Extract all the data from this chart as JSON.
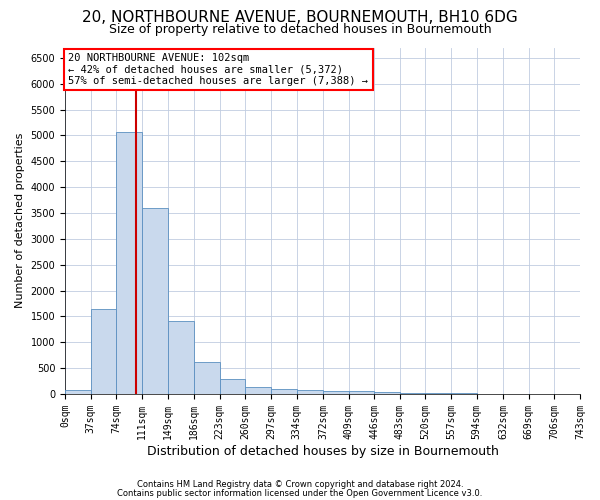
{
  "title": "20, NORTHBOURNE AVENUE, BOURNEMOUTH, BH10 6DG",
  "subtitle": "Size of property relative to detached houses in Bournemouth",
  "xlabel": "Distribution of detached houses by size in Bournemouth",
  "ylabel": "Number of detached properties",
  "footnote1": "Contains HM Land Registry data © Crown copyright and database right 2024.",
  "footnote2": "Contains public sector information licensed under the Open Government Licence v3.0.",
  "bar_color": "#c9d9ed",
  "bar_edge_color": "#5a8fc0",
  "grid_color": "#c0cce0",
  "vline_color": "#cc0000",
  "vline_x": 102,
  "annotation_line1": "20 NORTHBOURNE AVENUE: 102sqm",
  "annotation_line2": "← 42% of detached houses are smaller (5,372)",
  "annotation_line3": "57% of semi-detached houses are larger (7,388) →",
  "bin_edges": [
    0,
    37,
    74,
    111,
    149,
    186,
    223,
    260,
    297,
    334,
    372,
    409,
    446,
    483,
    520,
    557,
    594,
    632,
    669,
    706,
    743
  ],
  "bar_heights": [
    75,
    1650,
    5060,
    3600,
    1420,
    610,
    290,
    135,
    105,
    75,
    65,
    55,
    40,
    25,
    15,
    10,
    8,
    5,
    5,
    5
  ],
  "ylim": [
    0,
    6700
  ],
  "xlim": [
    0,
    743
  ],
  "title_fontsize": 11,
  "subtitle_fontsize": 9,
  "ylabel_fontsize": 8,
  "xlabel_fontsize": 9,
  "tick_fontsize": 7,
  "annot_fontsize": 7.5,
  "footnote_fontsize": 6
}
